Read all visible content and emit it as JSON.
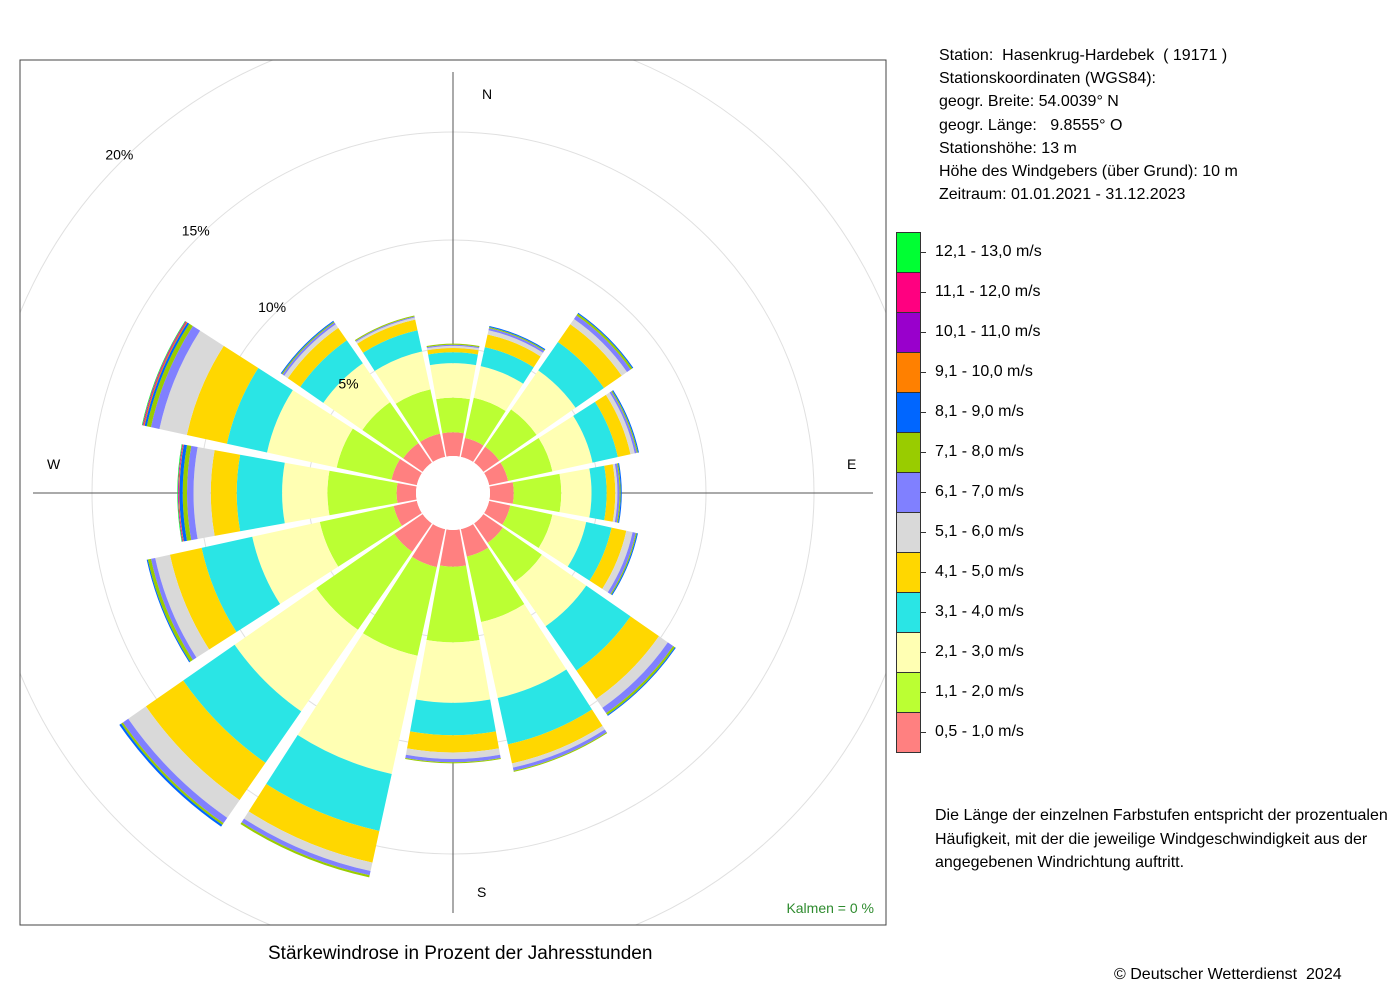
{
  "station": {
    "lines": [
      "Station:  Hasenkrug-Hardebek  ( 19171 )",
      "Stationskoordinaten (WGS84):",
      "geogr. Breite: 54.0039° N",
      "geogr. Länge:   9.8555° O",
      "Stationshöhe: 13 m",
      "Höhe des Windgebers (über Grund): 10 m",
      "Zeitraum: 01.01.2021 - 31.12.2023"
    ]
  },
  "caption": "Stärkewindrose in Prozent der Jahresstunden",
  "copyright": "© Deutscher Wetterdienst  2024",
  "note": "Die Länge der einzelnen Farbstufen entspricht der prozentualen Häufigkeit, mit der die jeweilige Windgeschwindigkeit aus der angegebenen Windrichtung auftritt.",
  "kalmen": "Kalmen  =  0 %",
  "chart_data": {
    "type": "wind-rose",
    "directions": [
      "N",
      "NNO",
      "NO",
      "ONO",
      "O",
      "OSO",
      "SO",
      "SSO",
      "S",
      "SSW",
      "SW",
      "WSW",
      "W",
      "WNW",
      "NW",
      "NNW"
    ],
    "direction_angles_deg": [
      0,
      22.5,
      45,
      67.5,
      90,
      112.5,
      135,
      157.5,
      180,
      202.5,
      225,
      247.5,
      270,
      292.5,
      315,
      337.5
    ],
    "compass_labels": {
      "N": "N",
      "E": "E",
      "S": "S",
      "W": "W"
    },
    "radial_ticks": [
      5,
      10,
      15,
      20
    ],
    "radial_tick_labels": [
      "5%",
      "10%",
      "15%",
      "20%"
    ],
    "unit": "%",
    "speed_classes": [
      {
        "label": "0,5 - 1,0 m/s",
        "color": "#ff8080"
      },
      {
        "label": "1,1 - 2,0 m/s",
        "color": "#bbff33"
      },
      {
        "label": "2,1 - 3,0 m/s",
        "color": "#ffffb3"
      },
      {
        "label": "3,1 - 4,0 m/s",
        "color": "#2ae5e5"
      },
      {
        "label": "4,1 - 5,0 m/s",
        "color": "#ffd700"
      },
      {
        "label": "5,1 - 6,0 m/s",
        "color": "#d9d9d9"
      },
      {
        "label": "6,1 - 7,0 m/s",
        "color": "#8080ff"
      },
      {
        "label": "7,1 - 8,0 m/s",
        "color": "#99cc00"
      },
      {
        "label": "8,1 - 9,0 m/s",
        "color": "#0066ff"
      },
      {
        "label": "9,1 - 10,0 m/s",
        "color": "#ff8000"
      },
      {
        "label": "10,1 - 11,0 m/s",
        "color": "#9900cc"
      },
      {
        "label": "11,1 - 12,0 m/s",
        "color": "#ff0080"
      },
      {
        "label": "12,1 - 13,0 m/s",
        "color": "#00ff33"
      }
    ],
    "cumulative_percent": [
      [
        1.1,
        2.7,
        4.3,
        4.8,
        5.0,
        5.1,
        5.15,
        5.2,
        5.2,
        5.2,
        5.2,
        5.2,
        5.2
      ],
      [
        0.9,
        2.8,
        4.3,
        5.2,
        5.8,
        6.0,
        6.1,
        6.15,
        6.2,
        6.2,
        6.2,
        6.2,
        6.2
      ],
      [
        0.9,
        3.0,
        5.2,
        6.8,
        7.8,
        8.1,
        8.3,
        8.4,
        8.45,
        8.45,
        8.45,
        8.45,
        8.45
      ],
      [
        0.9,
        3.0,
        4.9,
        6.1,
        6.7,
        6.9,
        7.0,
        7.05,
        7.1,
        7.1,
        7.1,
        7.1,
        7.1
      ],
      [
        1.1,
        3.3,
        4.7,
        5.4,
        5.8,
        5.9,
        6.0,
        6.05,
        6.1,
        6.1,
        6.1,
        6.1,
        6.1
      ],
      [
        1.0,
        3.0,
        4.6,
        5.8,
        6.5,
        6.8,
        6.95,
        7.0,
        7.05,
        7.05,
        7.05,
        7.05,
        7.05
      ],
      [
        1.1,
        3.3,
        5.8,
        8.3,
        9.9,
        10.4,
        10.7,
        10.8,
        10.85,
        10.85,
        10.85,
        10.85,
        10.85
      ],
      [
        1.3,
        4.4,
        8.0,
        10.2,
        11.1,
        11.3,
        11.45,
        11.5,
        11.5,
        11.5,
        11.5,
        11.5,
        11.5
      ],
      [
        1.7,
        5.2,
        8.0,
        9.5,
        10.3,
        10.6,
        10.75,
        10.8,
        10.8,
        10.8,
        10.8,
        10.8,
        10.8
      ],
      [
        1.8,
        6.0,
        11.6,
        14.3,
        15.8,
        16.2,
        16.4,
        16.5,
        16.5,
        16.5,
        16.5,
        16.5,
        16.5
      ],
      [
        1.6,
        6.0,
        10.6,
        13.5,
        15.6,
        16.6,
        16.9,
        17.0,
        17.1,
        17.1,
        17.1,
        17.1,
        17.1
      ],
      [
        1.1,
        4.6,
        7.8,
        10.2,
        11.7,
        12.4,
        12.6,
        12.75,
        12.8,
        12.8,
        12.8,
        12.8,
        12.8
      ],
      [
        0.9,
        4.1,
        6.2,
        8.3,
        9.5,
        10.3,
        10.6,
        10.8,
        10.95,
        10.98,
        11.0,
        11.02,
        11.05
      ],
      [
        1.2,
        3.8,
        7.1,
        9.0,
        10.9,
        12.2,
        12.6,
        12.8,
        12.9,
        12.95,
        12.98,
        13.0,
        13.03
      ],
      [
        1.1,
        3.4,
        5.6,
        6.9,
        7.6,
        7.8,
        7.9,
        7.95,
        8.0,
        8.0,
        8.0,
        8.0,
        8.0
      ],
      [
        1.1,
        3.2,
        5.0,
        6.0,
        6.5,
        6.6,
        6.65,
        6.7,
        6.7,
        6.7,
        6.7,
        6.7,
        6.7
      ]
    ]
  }
}
